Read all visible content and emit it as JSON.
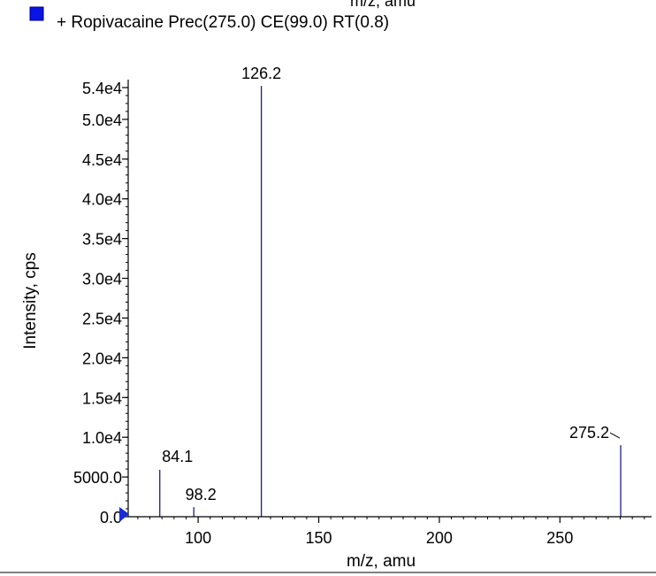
{
  "header": {
    "cut_label": "m/z, amu",
    "legend_label": "+ Ropivacaine Prec(275.0) CE(99.0) RT(0.8)"
  },
  "colors": {
    "peak": "#1c1c8c",
    "legend_marker": "#0a14e6",
    "axis": "#000000"
  },
  "chart_data": {
    "type": "bar",
    "subtype": "mass-spectrum-stick",
    "title": "",
    "xlabel": "m/z, amu",
    "ylabel": "Intensity, cps",
    "xlim": [
      71,
      288
    ],
    "ylim": [
      0,
      55000
    ],
    "grid": false,
    "legend": {
      "placement": "top-left",
      "entries": [
        "+ Ropivacaine Prec(275.0) CE(99.0) RT(0.8)"
      ]
    },
    "x_ticks": [
      {
        "value": 100,
        "label": "100"
      },
      {
        "value": 150,
        "label": "150"
      },
      {
        "value": 200,
        "label": "200"
      },
      {
        "value": 250,
        "label": "250"
      }
    ],
    "y_ticks": [
      {
        "value": 0,
        "label": "0.0"
      },
      {
        "value": 5000,
        "label": "5000.0"
      },
      {
        "value": 10000,
        "label": "1.0e4"
      },
      {
        "value": 15000,
        "label": "1.5e4"
      },
      {
        "value": 20000,
        "label": "2.0e4"
      },
      {
        "value": 25000,
        "label": "2.5e4"
      },
      {
        "value": 30000,
        "label": "3.0e4"
      },
      {
        "value": 35000,
        "label": "3.5e4"
      },
      {
        "value": 40000,
        "label": "4.0e4"
      },
      {
        "value": 45000,
        "label": "4.5e4"
      },
      {
        "value": 50000,
        "label": "5.0e4"
      },
      {
        "value": 54000,
        "label": "5.4e4"
      }
    ],
    "peaks": [
      {
        "x": 84.1,
        "y": 5900,
        "label": "84.1"
      },
      {
        "x": 98.2,
        "y": 1200,
        "label": "98.2"
      },
      {
        "x": 126.2,
        "y": 54200,
        "label": "126.2"
      },
      {
        "x": 275.2,
        "y": 9000,
        "label": "275.2"
      }
    ]
  }
}
